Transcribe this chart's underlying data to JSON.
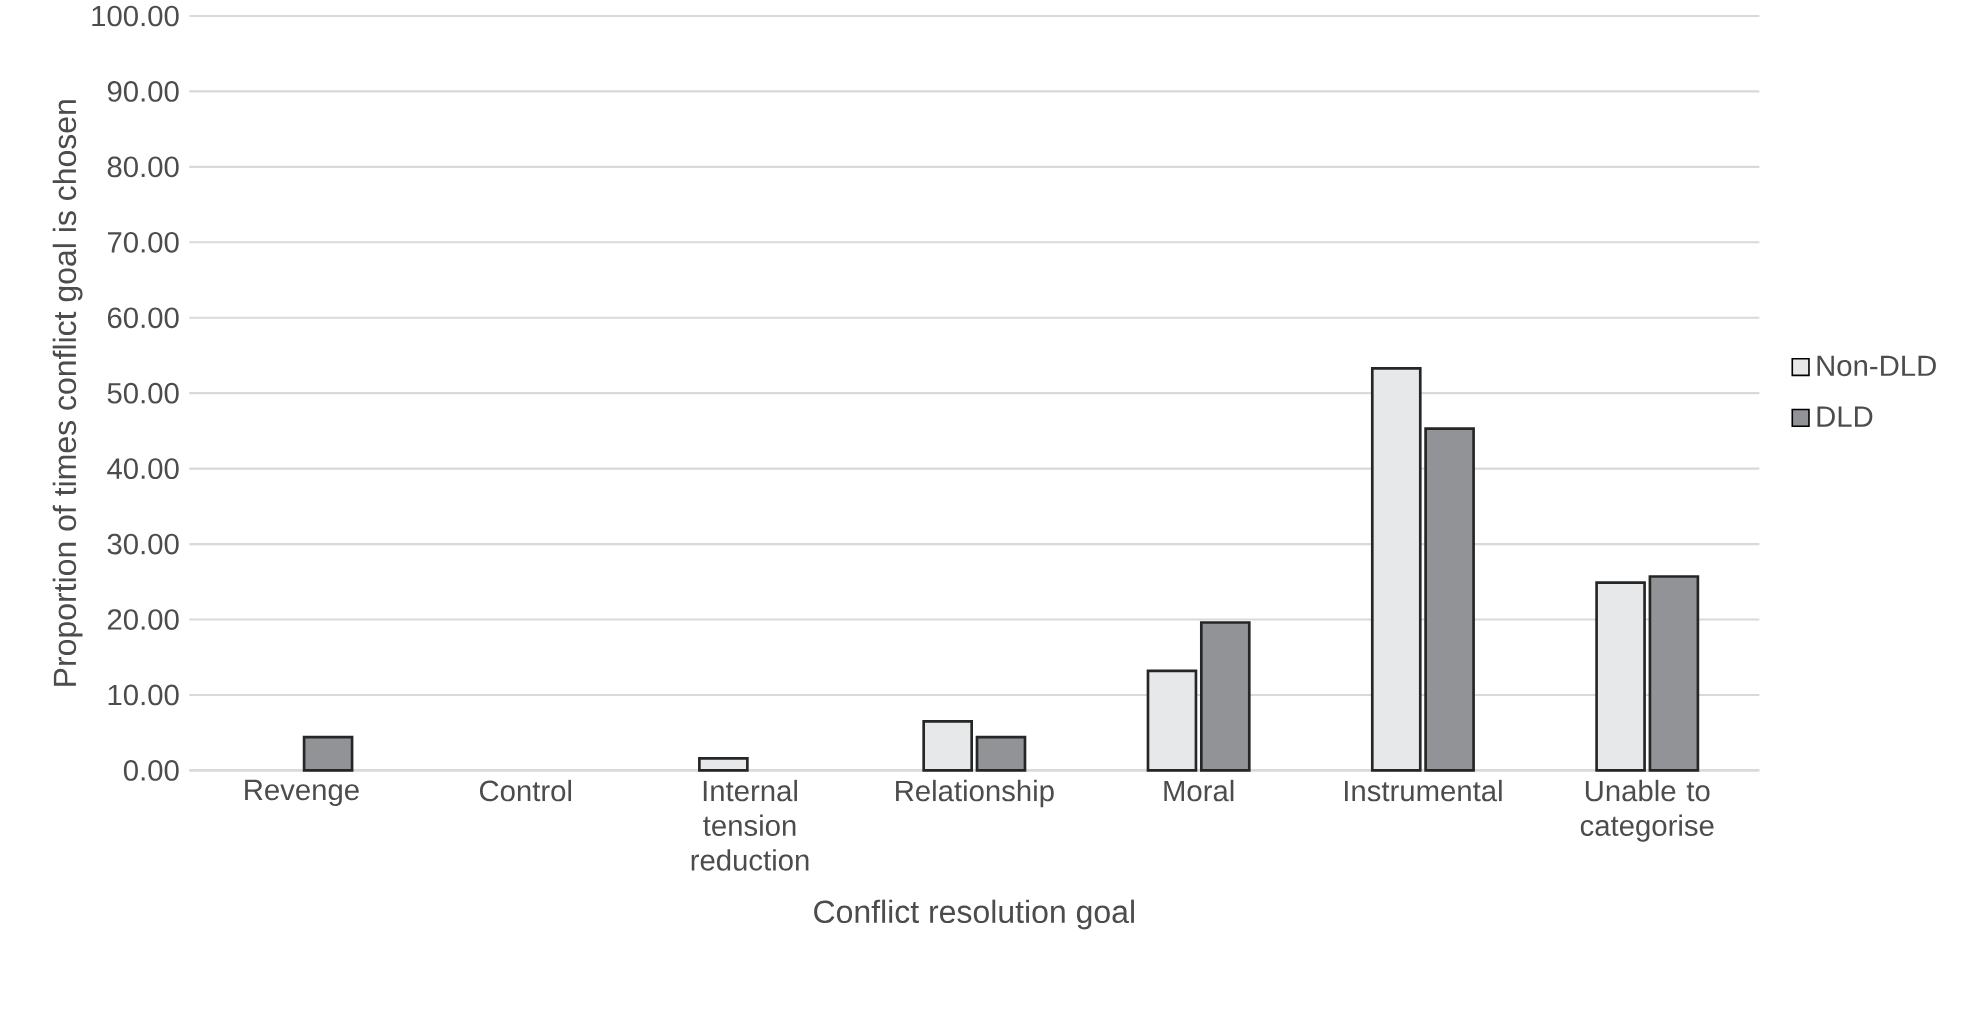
{
  "chart_data": {
    "type": "bar",
    "xlabel": "Conflict resolution goal",
    "ylabel": "Proportion of times conflict goal is chosen",
    "categories": [
      "Revenge",
      "Control",
      "Internal tension reduction",
      "Relationship",
      "Moral",
      "Instrumental",
      "Unable to categorise"
    ],
    "series": [
      {
        "name": "Non-DLD",
        "color": "#e7e8ea",
        "values": [
          0,
          0,
          1.6,
          6.5,
          13.2,
          53.3,
          24.9
        ]
      },
      {
        "name": "DLD",
        "color": "#929396",
        "values": [
          4.4,
          0,
          0,
          4.4,
          19.6,
          45.3,
          25.7
        ]
      }
    ],
    "ylim": [
      0,
      100
    ],
    "yticks": [
      {
        "value": 0,
        "label": "0.00"
      },
      {
        "value": 10,
        "label": "10.00"
      },
      {
        "value": 20,
        "label": "20.00"
      },
      {
        "value": 30,
        "label": "30.00"
      },
      {
        "value": 40,
        "label": "40.00"
      },
      {
        "value": 50,
        "label": "50.00"
      },
      {
        "value": 60,
        "label": "60.00"
      },
      {
        "value": 70,
        "label": "70.00"
      },
      {
        "value": 80,
        "label": "80.00"
      },
      {
        "value": 90,
        "label": "90.00"
      },
      {
        "value": 100,
        "label": "100.00"
      }
    ],
    "grid": "y",
    "legend": "right"
  }
}
